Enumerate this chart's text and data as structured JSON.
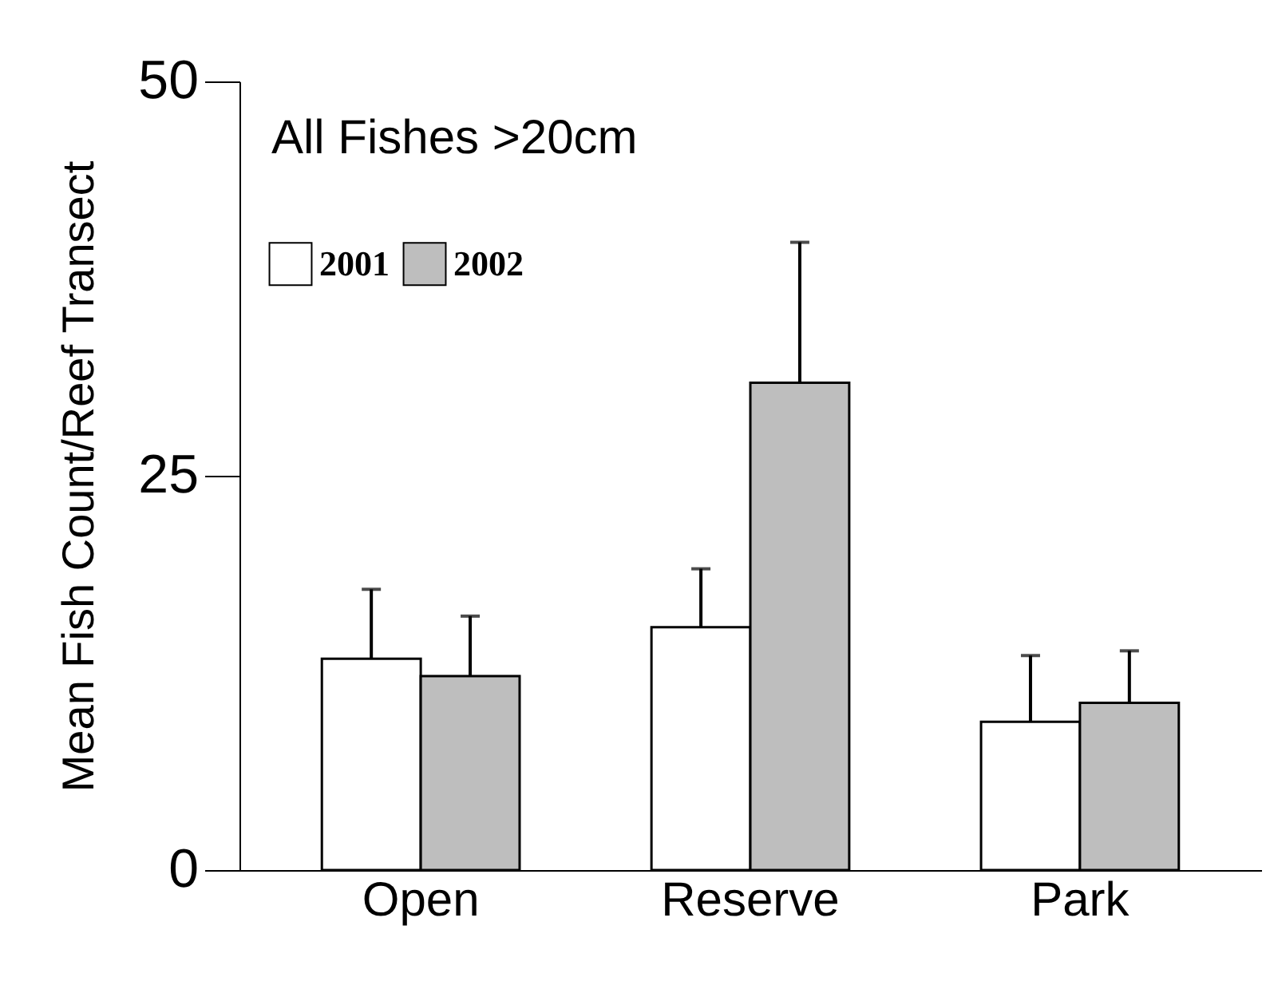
{
  "chart_data": {
    "type": "bar",
    "title": "All Fishes >20cm",
    "ylabel": "Mean Fish Count/Reef Transect",
    "categories": [
      "Open",
      "Reserve",
      "Park"
    ],
    "series": [
      {
        "name": "2001",
        "color": "#ffffff",
        "values": [
          13.4,
          15.4,
          9.4
        ],
        "errors": [
          [
            13.4,
            17.8
          ],
          [
            15.4,
            19.1
          ],
          [
            9.4,
            13.6
          ]
        ]
      },
      {
        "name": "2002",
        "color": "#bebebe",
        "values": [
          12.3,
          30.9,
          10.6
        ],
        "errors": [
          [
            12.3,
            16.1
          ],
          [
            30.9,
            39.8
          ],
          [
            10.6,
            13.9
          ]
        ]
      }
    ],
    "ylim": [
      0,
      50
    ],
    "yticks": [
      0,
      25,
      50
    ],
    "grid": false,
    "legend": "top left"
  }
}
